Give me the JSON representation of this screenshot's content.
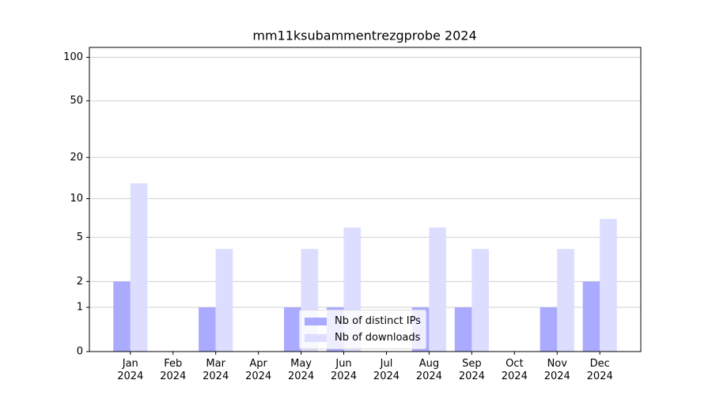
{
  "chart_data": {
    "type": "bar",
    "title": "mm11ksubammentrezgprobe 2024",
    "yscale": "log1p",
    "categories": [
      "Jan\n2024",
      "Feb\n2024",
      "Mar\n2024",
      "Apr\n2024",
      "May\n2024",
      "Jun\n2024",
      "Jul\n2024",
      "Aug\n2024",
      "Sep\n2024",
      "Oct\n2024",
      "Nov\n2024",
      "Dec\n2024"
    ],
    "series": [
      {
        "name": "Nb of distinct IPs",
        "color": "#aaaaff",
        "values": [
          2,
          0,
          1,
          0,
          1,
          1,
          0,
          1,
          1,
          0,
          1,
          2
        ]
      },
      {
        "name": "Nb of downloads",
        "color": "#ddddff",
        "values": [
          13,
          0,
          4,
          0,
          4,
          6,
          0,
          6,
          4,
          0,
          4,
          7
        ]
      }
    ],
    "ylim": [
      0,
      117
    ],
    "yticks": [
      0,
      1,
      2,
      5,
      10,
      20,
      50,
      100
    ],
    "grid": true,
    "legend": "lower center"
  }
}
